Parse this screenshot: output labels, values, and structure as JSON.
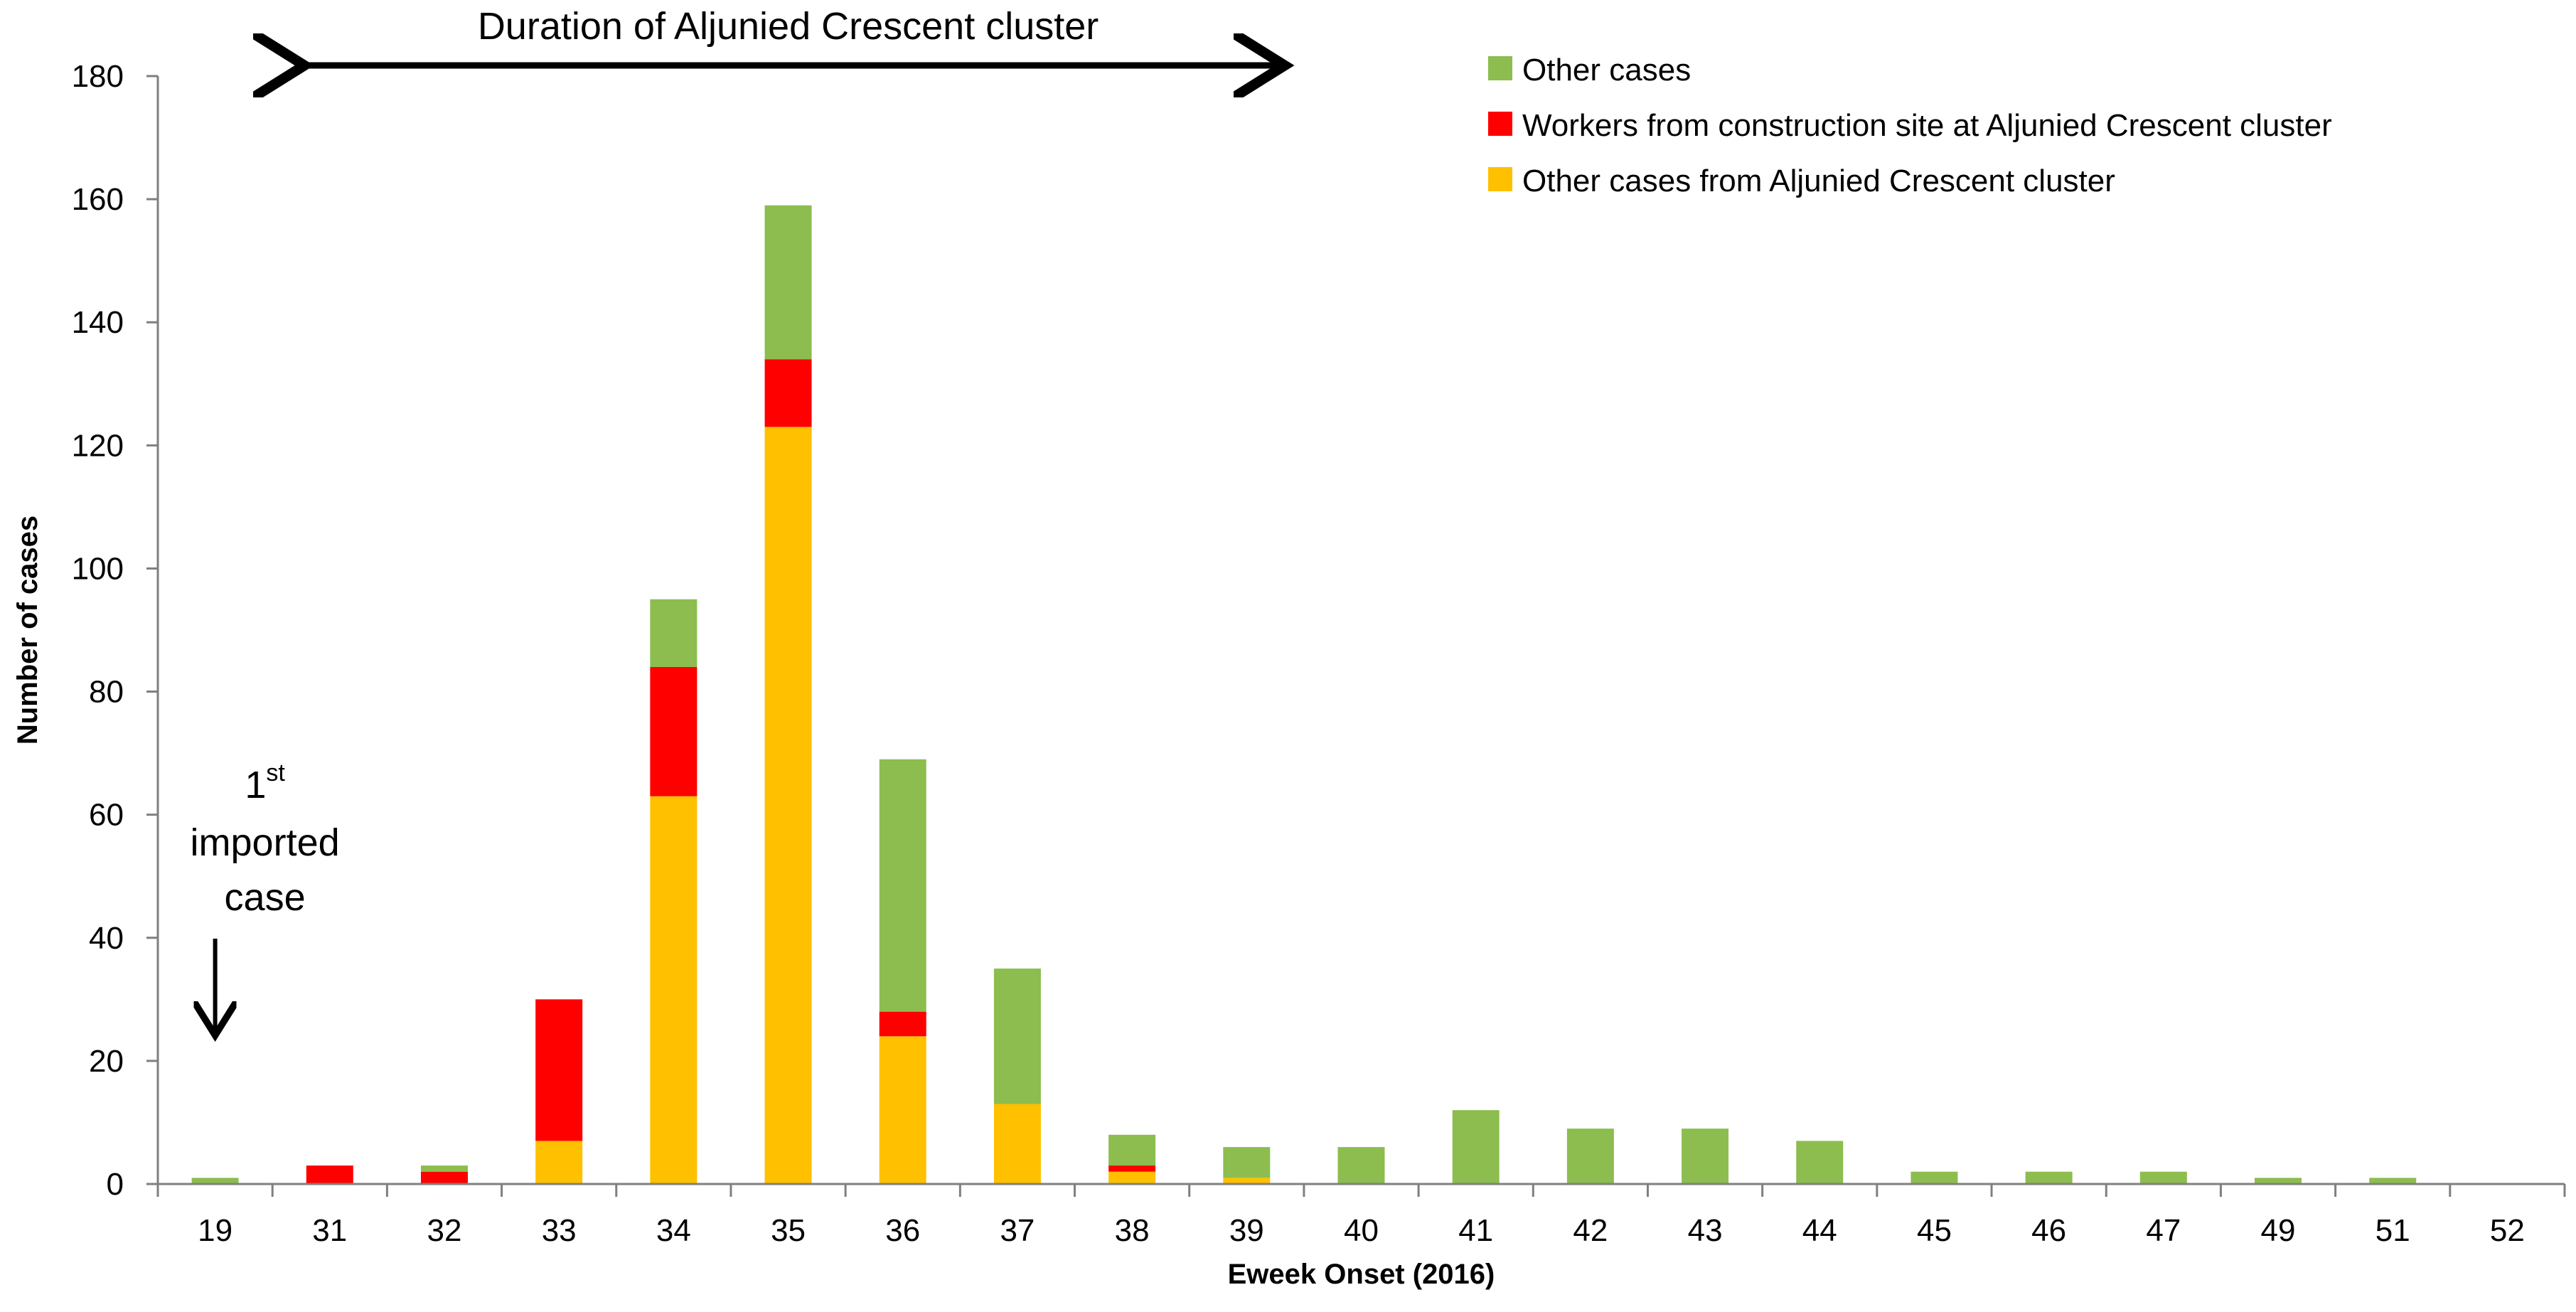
{
  "chart_data": {
    "type": "bar",
    "stacked": true,
    "xlabel": "Eweek Onset (2016)",
    "ylabel": "Number of cases",
    "ylim": [
      0,
      180
    ],
    "yticks": [
      0,
      20,
      40,
      60,
      80,
      100,
      120,
      140,
      160,
      180
    ],
    "categories": [
      "19",
      "31",
      "32",
      "33",
      "34",
      "35",
      "36",
      "37",
      "38",
      "39",
      "40",
      "41",
      "42",
      "43",
      "44",
      "45",
      "46",
      "47",
      "49",
      "51",
      "52"
    ],
    "series": [
      {
        "name": "Other cases from Aljunied Crescent cluster",
        "color": "#ffc000",
        "values": [
          0,
          0,
          0,
          7,
          63,
          123,
          24,
          13,
          2,
          1,
          0,
          0,
          0,
          0,
          0,
          0,
          0,
          0,
          0,
          0,
          0
        ]
      },
      {
        "name": "Workers from construction site at Aljunied Crescent cluster",
        "color": "#ff0000",
        "values": [
          0,
          3,
          2,
          23,
          21,
          11,
          4,
          0,
          1,
          0,
          0,
          0,
          0,
          0,
          0,
          0,
          0,
          0,
          0,
          0,
          0
        ]
      },
      {
        "name": "Other cases",
        "color": "#8cbd4e",
        "values": [
          1,
          0,
          1,
          0,
          11,
          25,
          41,
          22,
          5,
          5,
          6,
          12,
          9,
          9,
          7,
          2,
          2,
          2,
          1,
          1,
          0
        ]
      }
    ],
    "legend_order": [
      "Other cases",
      "Workers from construction site at Aljunied Crescent cluster",
      "Other cases from Aljunied Crescent cluster"
    ],
    "legend_position": "top-right",
    "annotations": {
      "duration": {
        "text": "Duration of Aljunied Crescent cluster",
        "from_category": "31",
        "to_category": "39"
      },
      "first_case": {
        "line1_main": "1",
        "line1_sup": "st",
        "line2": "imported",
        "line3": "case",
        "category": "19"
      }
    }
  }
}
